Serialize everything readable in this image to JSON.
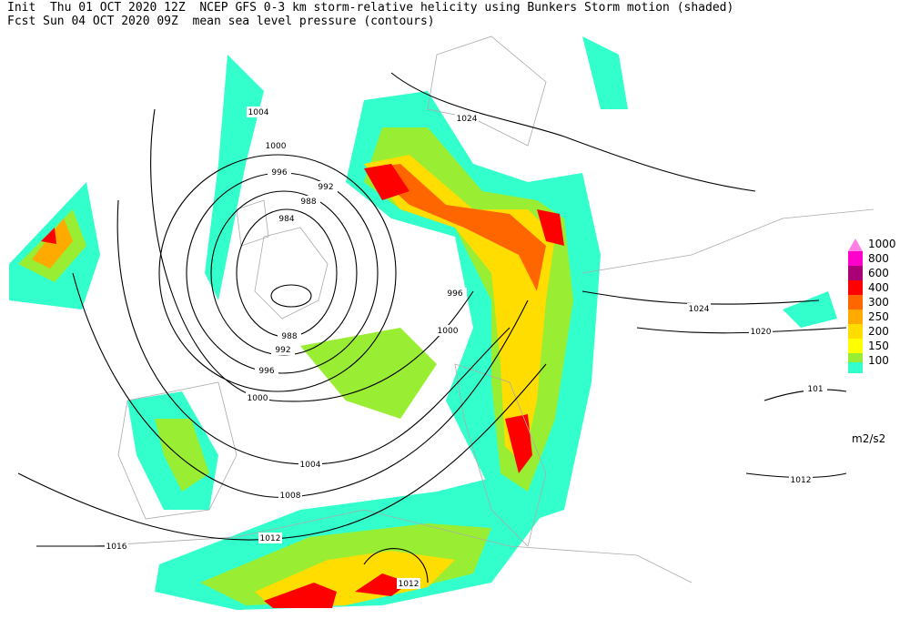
{
  "header": {
    "line1": "Init  Thu 01 OCT 2020 12Z  NCEP GFS 0-3 km storm-relative helicity using Bunkers Storm motion (shaded)",
    "line2": "Fcst Sun 04 OCT 2020 09Z  mean sea level pressure (contours)"
  },
  "legend": {
    "unit": "m2/s2",
    "levels": [
      {
        "label": "1000",
        "color": "#ff00cc"
      },
      {
        "label": "800",
        "color": "#aa0077"
      },
      {
        "label": "600",
        "color": "#ff0000"
      },
      {
        "label": "400",
        "color": "#ff6600"
      },
      {
        "label": "300",
        "color": "#ffaa00"
      },
      {
        "label": "250",
        "color": "#ffdd00"
      },
      {
        "label": "200",
        "color": "#ffff00"
      },
      {
        "label": "150",
        "color": "#99ee33"
      },
      {
        "label": "100",
        "color": "#33ffcc"
      }
    ]
  },
  "contour_labels": [
    "1004",
    "1000",
    "996",
    "992",
    "988",
    "984",
    "988",
    "992",
    "996",
    "1000",
    "1004",
    "1008",
    "1012",
    "1016",
    "1012",
    "1024",
    "996",
    "1000",
    "1024",
    "1020",
    "1012",
    "101"
  ]
}
